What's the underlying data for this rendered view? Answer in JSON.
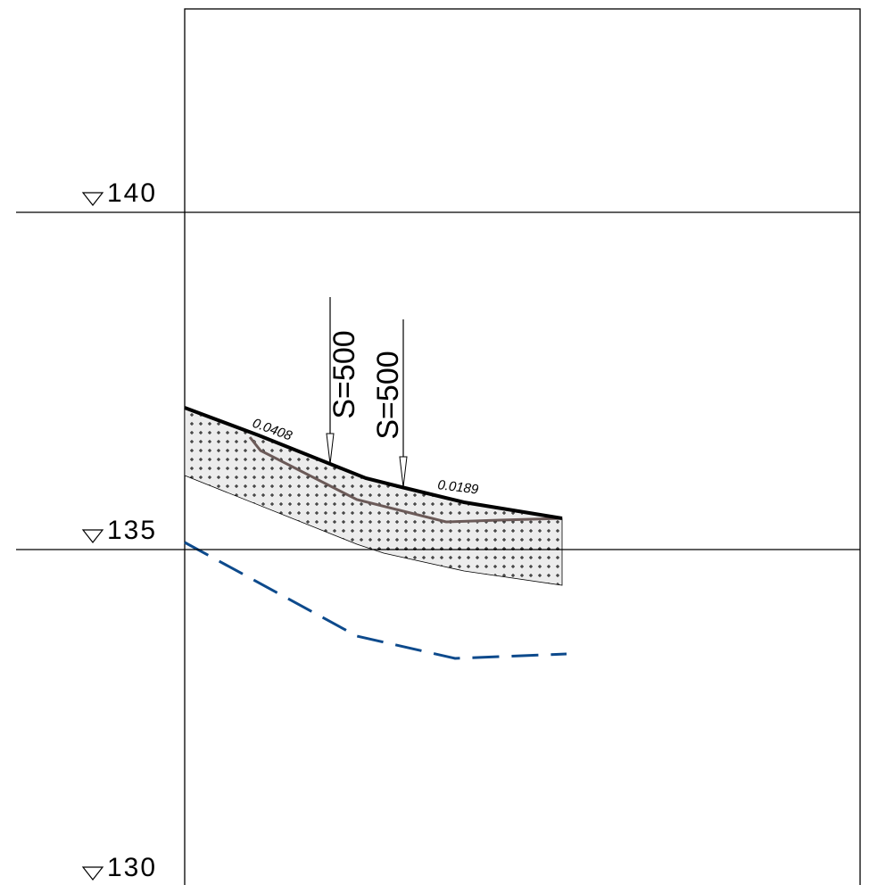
{
  "levels": [
    {
      "value": 140,
      "label": "140"
    },
    {
      "value": 135,
      "label": "135"
    },
    {
      "value": 130,
      "label": "130"
    }
  ],
  "slopes": [
    "0.0408",
    "0.0189"
  ],
  "markers": [
    "S=500",
    "S=500"
  ]
}
